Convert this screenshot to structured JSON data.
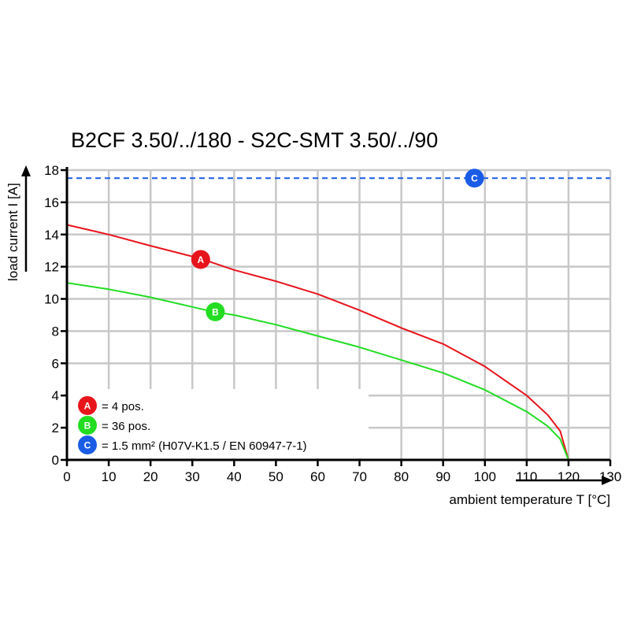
{
  "chart_data": {
    "type": "line",
    "title": "B2CF 3.50/../180 - S2C-SMT 3.50/../90",
    "xlabel": "ambient temperature T [°C]",
    "ylabel": "load current I [A]",
    "xlim": [
      0,
      130
    ],
    "ylim": [
      0,
      18
    ],
    "xticks": [
      0,
      10,
      20,
      30,
      40,
      50,
      60,
      70,
      80,
      90,
      100,
      110,
      120,
      130
    ],
    "yticks": [
      0,
      2,
      4,
      6,
      8,
      10,
      12,
      14,
      16,
      18
    ],
    "grid": true,
    "legend_position": "bottom-left",
    "series": [
      {
        "name": "A",
        "label": "= 4 pos.",
        "color": "#e8141c",
        "style": "solid",
        "x": [
          0,
          10,
          20,
          32,
          40,
          50,
          60,
          70,
          80,
          90,
          100,
          110,
          115,
          118,
          120
        ],
        "y": [
          14.6,
          14.0,
          13.3,
          12.5,
          11.8,
          11.1,
          10.3,
          9.3,
          8.2,
          7.2,
          5.8,
          4.0,
          2.8,
          1.8,
          0
        ]
      },
      {
        "name": "B",
        "label": "= 36 pos.",
        "color": "#22dd22",
        "style": "solid",
        "x": [
          0,
          10,
          20,
          35,
          40,
          50,
          60,
          70,
          80,
          90,
          100,
          110,
          115,
          118,
          120
        ],
        "y": [
          11.0,
          10.6,
          10.1,
          9.2,
          9.0,
          8.4,
          7.7,
          7.0,
          6.2,
          5.4,
          4.35,
          3.0,
          2.1,
          1.3,
          0
        ]
      },
      {
        "name": "C",
        "label": "= 1.5 mm² (H07V-K1.5 / EN 60947-7-1)",
        "color": "#1a5ce6",
        "style": "dashed",
        "x": [
          0,
          130
        ],
        "y": [
          17.5,
          17.5
        ]
      }
    ],
    "markers": [
      {
        "series": "A",
        "x": 32,
        "y": 12.45
      },
      {
        "series": "B",
        "x": 35.5,
        "y": 9.2
      },
      {
        "series": "C",
        "x": 97.5,
        "y": 17.5
      }
    ]
  }
}
